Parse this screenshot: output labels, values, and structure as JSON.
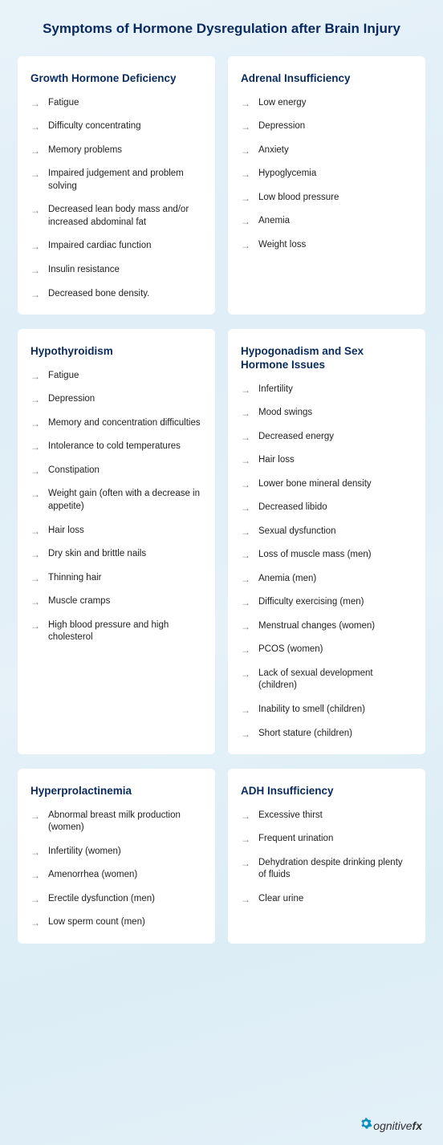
{
  "title": "Symptoms of Hormone Dysregulation after Brain Injury",
  "colors": {
    "heading": "#0a2a5e",
    "text": "#222222",
    "arrow": "#888888",
    "cardBg": "#ffffff",
    "logoAccent": "#0a8fbf"
  },
  "cards": [
    {
      "title": "Growth Hormone Deficiency",
      "symptoms": [
        "Fatigue",
        "Difficulty concentrating",
        "Memory problems",
        "Impaired judgement and problem solving",
        "Decreased lean body mass and/or increased abdominal fat",
        "Impaired cardiac function",
        "Insulin resistance",
        "Decreased bone density."
      ]
    },
    {
      "title": "Adrenal Insufficiency",
      "symptoms": [
        "Low energy",
        "Depression",
        "Anxiety",
        "Hypoglycemia",
        "Low blood pressure",
        "Anemia",
        "Weight loss"
      ]
    },
    {
      "title": "Hypothyroidism",
      "symptoms": [
        "Fatigue",
        "Depression",
        "Memory and concentration difficulties",
        "Intolerance to cold temperatures",
        "Constipation",
        "Weight gain (often with a decrease in appetite)",
        "Hair loss",
        "Dry skin and brittle nails",
        "Thinning hair",
        "Muscle cramps",
        "High blood pressure and high cholesterol"
      ]
    },
    {
      "title": "Hypogonadism and Sex Hormone Issues",
      "symptoms": [
        "Infertility",
        "Mood swings",
        "Decreased energy",
        "Hair loss",
        "Lower bone mineral density",
        "Decreased libido",
        "Sexual dysfunction",
        "Loss of muscle mass (men)",
        "Anemia (men)",
        "Difficulty exercising (men)",
        "Menstrual changes (women)",
        "PCOS (women)",
        "Lack of sexual development (children)",
        "Inability to smell (children)",
        "Short stature (children)"
      ]
    },
    {
      "title": "Hyperprolactinemia",
      "symptoms": [
        "Abnormal breast milk production (women)",
        "Infertility (women)",
        "Amenorrhea (women)",
        "Erectile dysfunction (men)",
        "Low sperm count (men)"
      ]
    },
    {
      "title": "ADH Insufficiency",
      "symptoms": [
        "Excessive thirst",
        "Frequent urination",
        "Dehydration despite drinking plenty of fluids",
        "Clear urine"
      ]
    }
  ],
  "logo": {
    "brand": "ognitive",
    "suffix": "fx"
  }
}
